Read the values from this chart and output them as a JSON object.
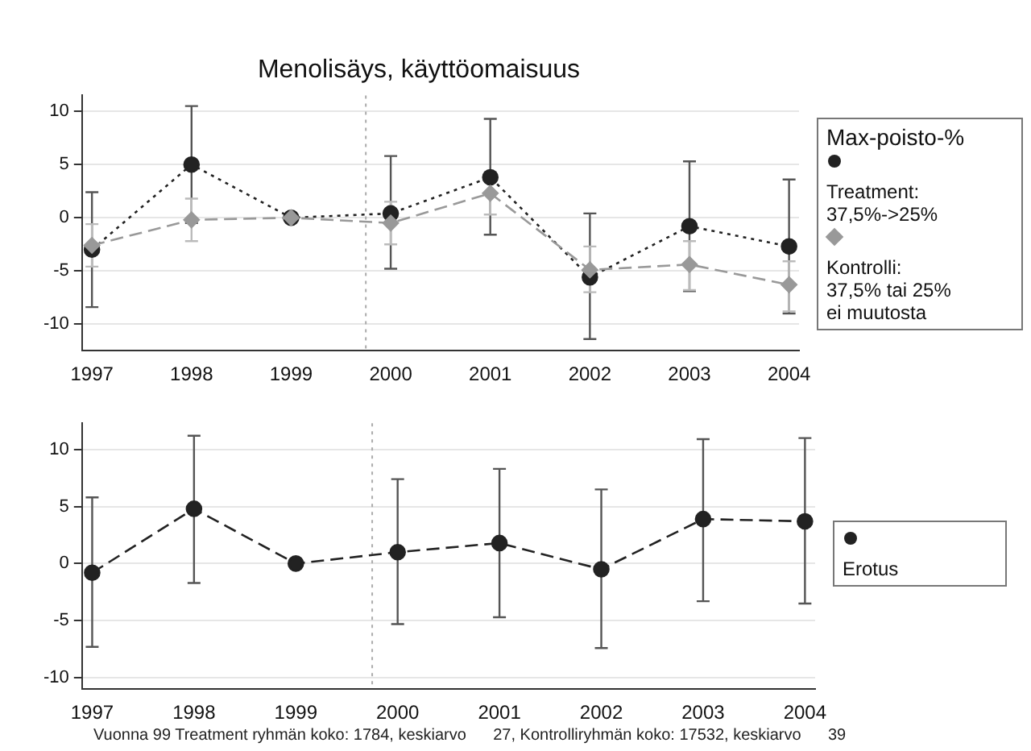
{
  "chart_data": [
    {
      "type": "line",
      "title": "Menolisäys, käyttöomaisuus",
      "legend_title": "Max-poisto-%",
      "x": [
        1997,
        1998,
        1999,
        2000,
        2001,
        2002,
        2003,
        2004
      ],
      "xlim": [
        1996.9,
        2004.1
      ],
      "xticks": [
        1997,
        1998,
        1999,
        2000,
        2001,
        2002,
        2003,
        2004
      ],
      "ylim": [
        -12.5,
        11.5
      ],
      "yticks": [
        -10,
        -5,
        0,
        5,
        10
      ],
      "grid": "y",
      "legend": "right",
      "ref_lines": [
        {
          "axis": "x",
          "value": 1999.75,
          "line_style": "dotted",
          "color": "#aaaaaa"
        }
      ],
      "series": [
        {
          "name": "Treatment:\n37,5%->25%",
          "color": "#222222",
          "marker": "circle",
          "line_style": "dotted",
          "values": [
            -3.0,
            5.0,
            0,
            0.4,
            3.8,
            -5.6,
            -0.8,
            -2.7
          ],
          "errors": [
            [
              -8.4,
              2.4
            ],
            [
              -0.5,
              10.5
            ],
            null,
            [
              -4.8,
              5.8
            ],
            [
              -1.6,
              9.3
            ],
            [
              -11.4,
              0.4
            ],
            [
              -6.9,
              5.3
            ],
            [
              -9.0,
              3.6
            ]
          ]
        },
        {
          "name": "Kontrolli:\n37,5% tai 25%\nei muutosta",
          "color": "#999999",
          "marker": "diamond",
          "line_style": "dashed",
          "values": [
            -2.6,
            -0.2,
            0,
            -0.5,
            2.3,
            -4.9,
            -4.4,
            -6.3
          ],
          "errors": [
            [
              -4.6,
              -0.6
            ],
            [
              -2.2,
              1.8
            ],
            null,
            [
              -2.5,
              1.5
            ],
            [
              0.3,
              4.3
            ],
            [
              -7.0,
              -2.7
            ],
            [
              -6.8,
              -2.2
            ],
            [
              -8.8,
              -4.1
            ]
          ]
        }
      ]
    },
    {
      "type": "line",
      "x": [
        1997,
        1998,
        1999,
        2000,
        2001,
        2002,
        2003,
        2004
      ],
      "xlim": [
        1996.9,
        2004.1
      ],
      "xticks": [
        1997,
        1998,
        1999,
        2000,
        2001,
        2002,
        2003,
        2004
      ],
      "ylim": [
        -11,
        12.3
      ],
      "yticks": [
        -10,
        -5,
        0,
        5,
        10
      ],
      "grid": "y",
      "legend": "right",
      "ref_lines": [
        {
          "axis": "x",
          "value": 1999.75,
          "line_style": "dotted",
          "color": "#aaaaaa"
        }
      ],
      "annotations": [
        "Vuonna 99 Treatment ryhmän koko: 1784, keskiarvo      27, Kontrolliryhmän koko: 17532, keskiarvo      39"
      ],
      "series": [
        {
          "name": "Erotus",
          "color": "#222222",
          "marker": "circle",
          "line_style": "dashed",
          "values": [
            -0.8,
            4.8,
            0,
            1.0,
            1.8,
            -0.5,
            3.9,
            3.7
          ],
          "errors": [
            [
              -7.3,
              5.8
            ],
            [
              -1.7,
              11.2
            ],
            null,
            [
              -5.3,
              7.4
            ],
            [
              -4.7,
              8.3
            ],
            [
              -7.4,
              6.5
            ],
            [
              -3.3,
              10.9
            ],
            [
              -3.5,
              11.0
            ]
          ]
        }
      ]
    }
  ]
}
